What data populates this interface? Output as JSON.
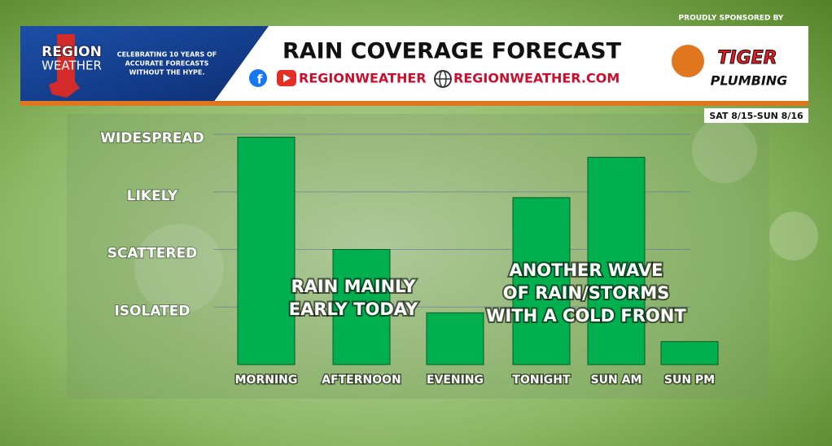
{
  "header": {
    "logo_top": "REGION",
    "logo_bottom": "WEATHER",
    "tagline": [
      "CELEBRATING 10 YEARS  OF",
      "ACCURATE FORECASTS",
      "WITHOUT THE HYPE."
    ],
    "social_handle": "REGIONWEATHER",
    "website": "REGIONWEATHER.COM",
    "sponsor_note": "PROUDLY SPONSORED BY",
    "sponsor_top": "TIGER",
    "sponsor_bottom": "PLUMBING",
    "date_range": "SAT 8/15-SUN 8/16"
  },
  "chart_data": {
    "type": "bar",
    "title": "RAIN COVERAGE FORECAST",
    "categories": [
      "MORNING",
      "AFTERNOON",
      "EVENING",
      "TONIGHT",
      "SUN AM",
      "SUN PM"
    ],
    "values": [
      3.95,
      2.0,
      0.9,
      2.9,
      3.6,
      0.4
    ],
    "color": "#00b04f",
    "ylim": [
      0,
      4
    ],
    "yticks": [
      {
        "value": 1,
        "label": "ISOLATED"
      },
      {
        "value": 2,
        "label": "SCATTERED"
      },
      {
        "value": 3,
        "label": "LIKELY"
      },
      {
        "value": 4,
        "label": "WIDESPREAD"
      }
    ],
    "grid": true,
    "annotations": [
      {
        "lines": [
          "RAIN MAINLY",
          "EARLY TODAY"
        ]
      },
      {
        "lines": [
          "ANOTHER WAVE",
          "OF RAIN/STORMS",
          "WITH A COLD FRONT"
        ]
      }
    ]
  }
}
